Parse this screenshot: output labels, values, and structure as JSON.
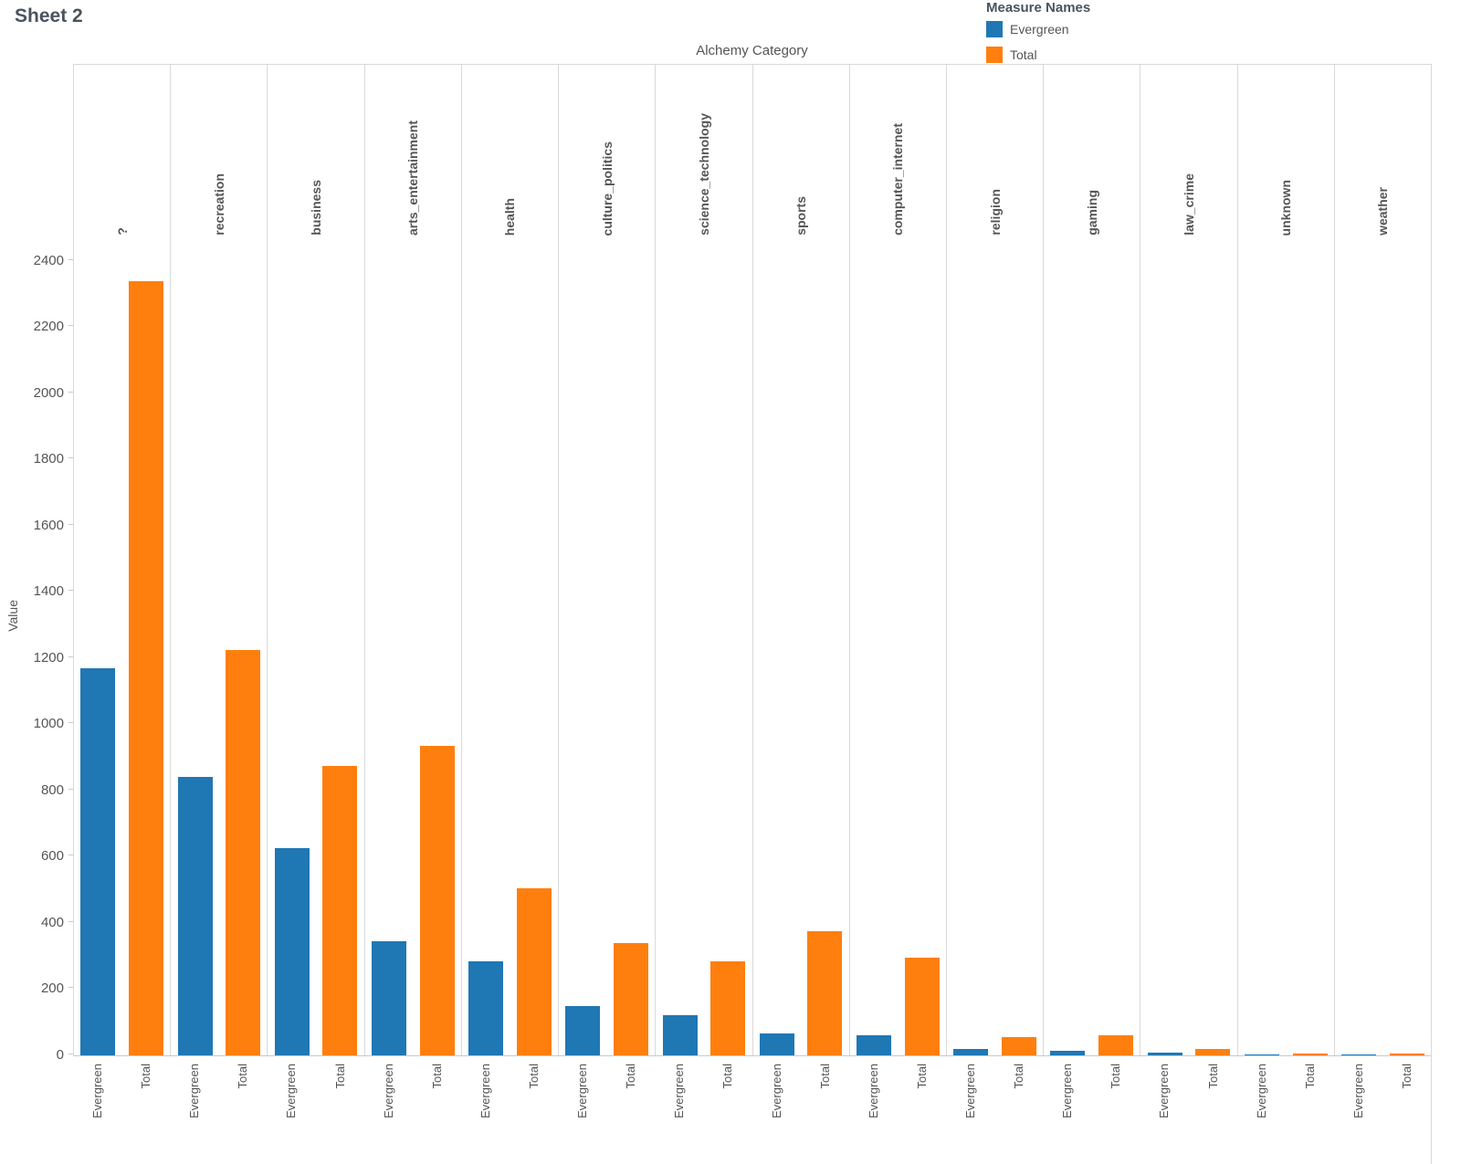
{
  "title": "Sheet 2",
  "legend": {
    "title": "Measure Names",
    "items": [
      {
        "label": "Evergreen",
        "color": "#1f77b4"
      },
      {
        "label": "Total",
        "color": "#ff7f0e"
      }
    ]
  },
  "chart_data": {
    "type": "bar",
    "column_header": "Alchemy Category",
    "ylabel": "Value",
    "ylim": [
      0,
      2400
    ],
    "yticks": [
      0,
      200,
      400,
      600,
      800,
      1000,
      1200,
      1400,
      1600,
      1800,
      2000,
      2200,
      2400
    ],
    "grid": "vertical-panel-dividers",
    "legend_position": "top-right",
    "categories": [
      "?",
      "recreation",
      "business",
      "arts_entertainment",
      "health",
      "culture_politics",
      "science_technology",
      "sports",
      "computer_internet",
      "religion",
      "gaming",
      "law_crime",
      "unknown",
      "weather"
    ],
    "series": [
      {
        "name": "Evergreen",
        "color": "#1f77b4",
        "values": [
          1170,
          840,
          625,
          345,
          285,
          150,
          120,
          65,
          60,
          20,
          15,
          8,
          2,
          1
        ]
      },
      {
        "name": "Total",
        "color": "#ff7f0e",
        "values": [
          2340,
          1225,
          875,
          935,
          505,
          340,
          285,
          375,
          295,
          55,
          60,
          18,
          5,
          5
        ]
      }
    ]
  }
}
